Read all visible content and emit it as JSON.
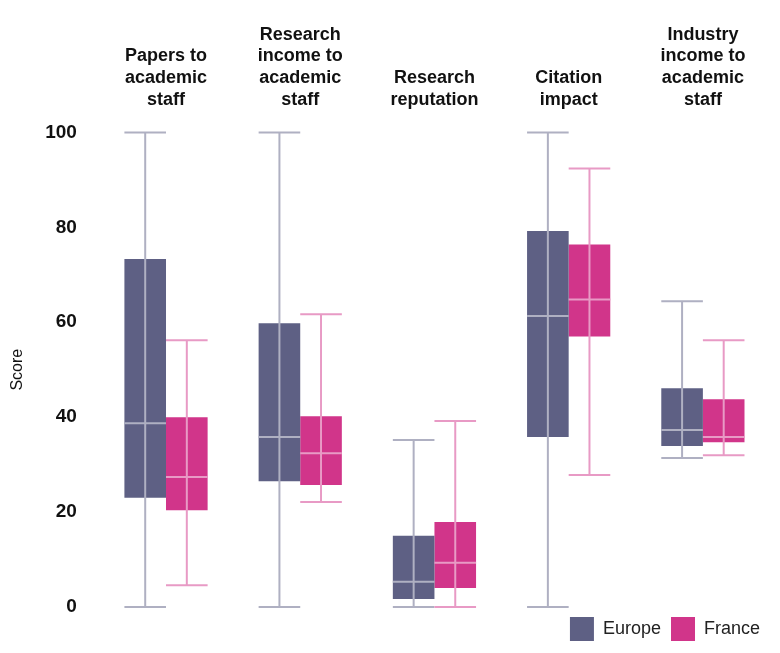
{
  "chart_data": {
    "type": "box",
    "y_label": "Score",
    "categories": [
      "Papers to academic staff",
      "Research income to academic staff",
      "Research reputation",
      "Citation impact",
      "Industry income to academic staff"
    ],
    "series": [
      {
        "name": "Europe",
        "color": "#5e6084",
        "values": [
          {
            "min": 0,
            "q1": 23,
            "median": 38.7,
            "q3": 73.3,
            "max": 100
          },
          {
            "min": 0,
            "q1": 26.5,
            "median": 35.8,
            "q3": 59.8,
            "max": 100
          },
          {
            "min": 0,
            "q1": 1.7,
            "median": 5.3,
            "q3": 15,
            "max": 35.2
          },
          {
            "min": 0,
            "q1": 35.8,
            "median": 61.3,
            "q3": 79.2,
            "max": 100
          },
          {
            "min": 31.4,
            "q1": 33.9,
            "median": 37.3,
            "q3": 46.1,
            "max": 64.4
          }
        ]
      },
      {
        "name": "France",
        "color": "#d1358a",
        "values": [
          {
            "min": 4.6,
            "q1": 20.4,
            "median": 27.4,
            "q3": 40,
            "max": 56.2
          },
          {
            "min": 22.1,
            "q1": 25.7,
            "median": 32.4,
            "q3": 40.2,
            "max": 61.7
          },
          {
            "min": 0,
            "q1": 4,
            "median": 9.3,
            "q3": 17.9,
            "max": 39.2
          },
          {
            "min": 27.8,
            "q1": 57,
            "median": 64.8,
            "q3": 76.4,
            "max": 92.4
          },
          {
            "min": 32,
            "q1": 34.7,
            "median": 35.8,
            "q3": 43.8,
            "max": 56.2
          }
        ]
      }
    ],
    "ylim": [
      0,
      100
    ],
    "yticks": [
      0,
      20,
      40,
      60,
      80,
      100
    ],
    "grid": false,
    "legend": "lower right"
  }
}
